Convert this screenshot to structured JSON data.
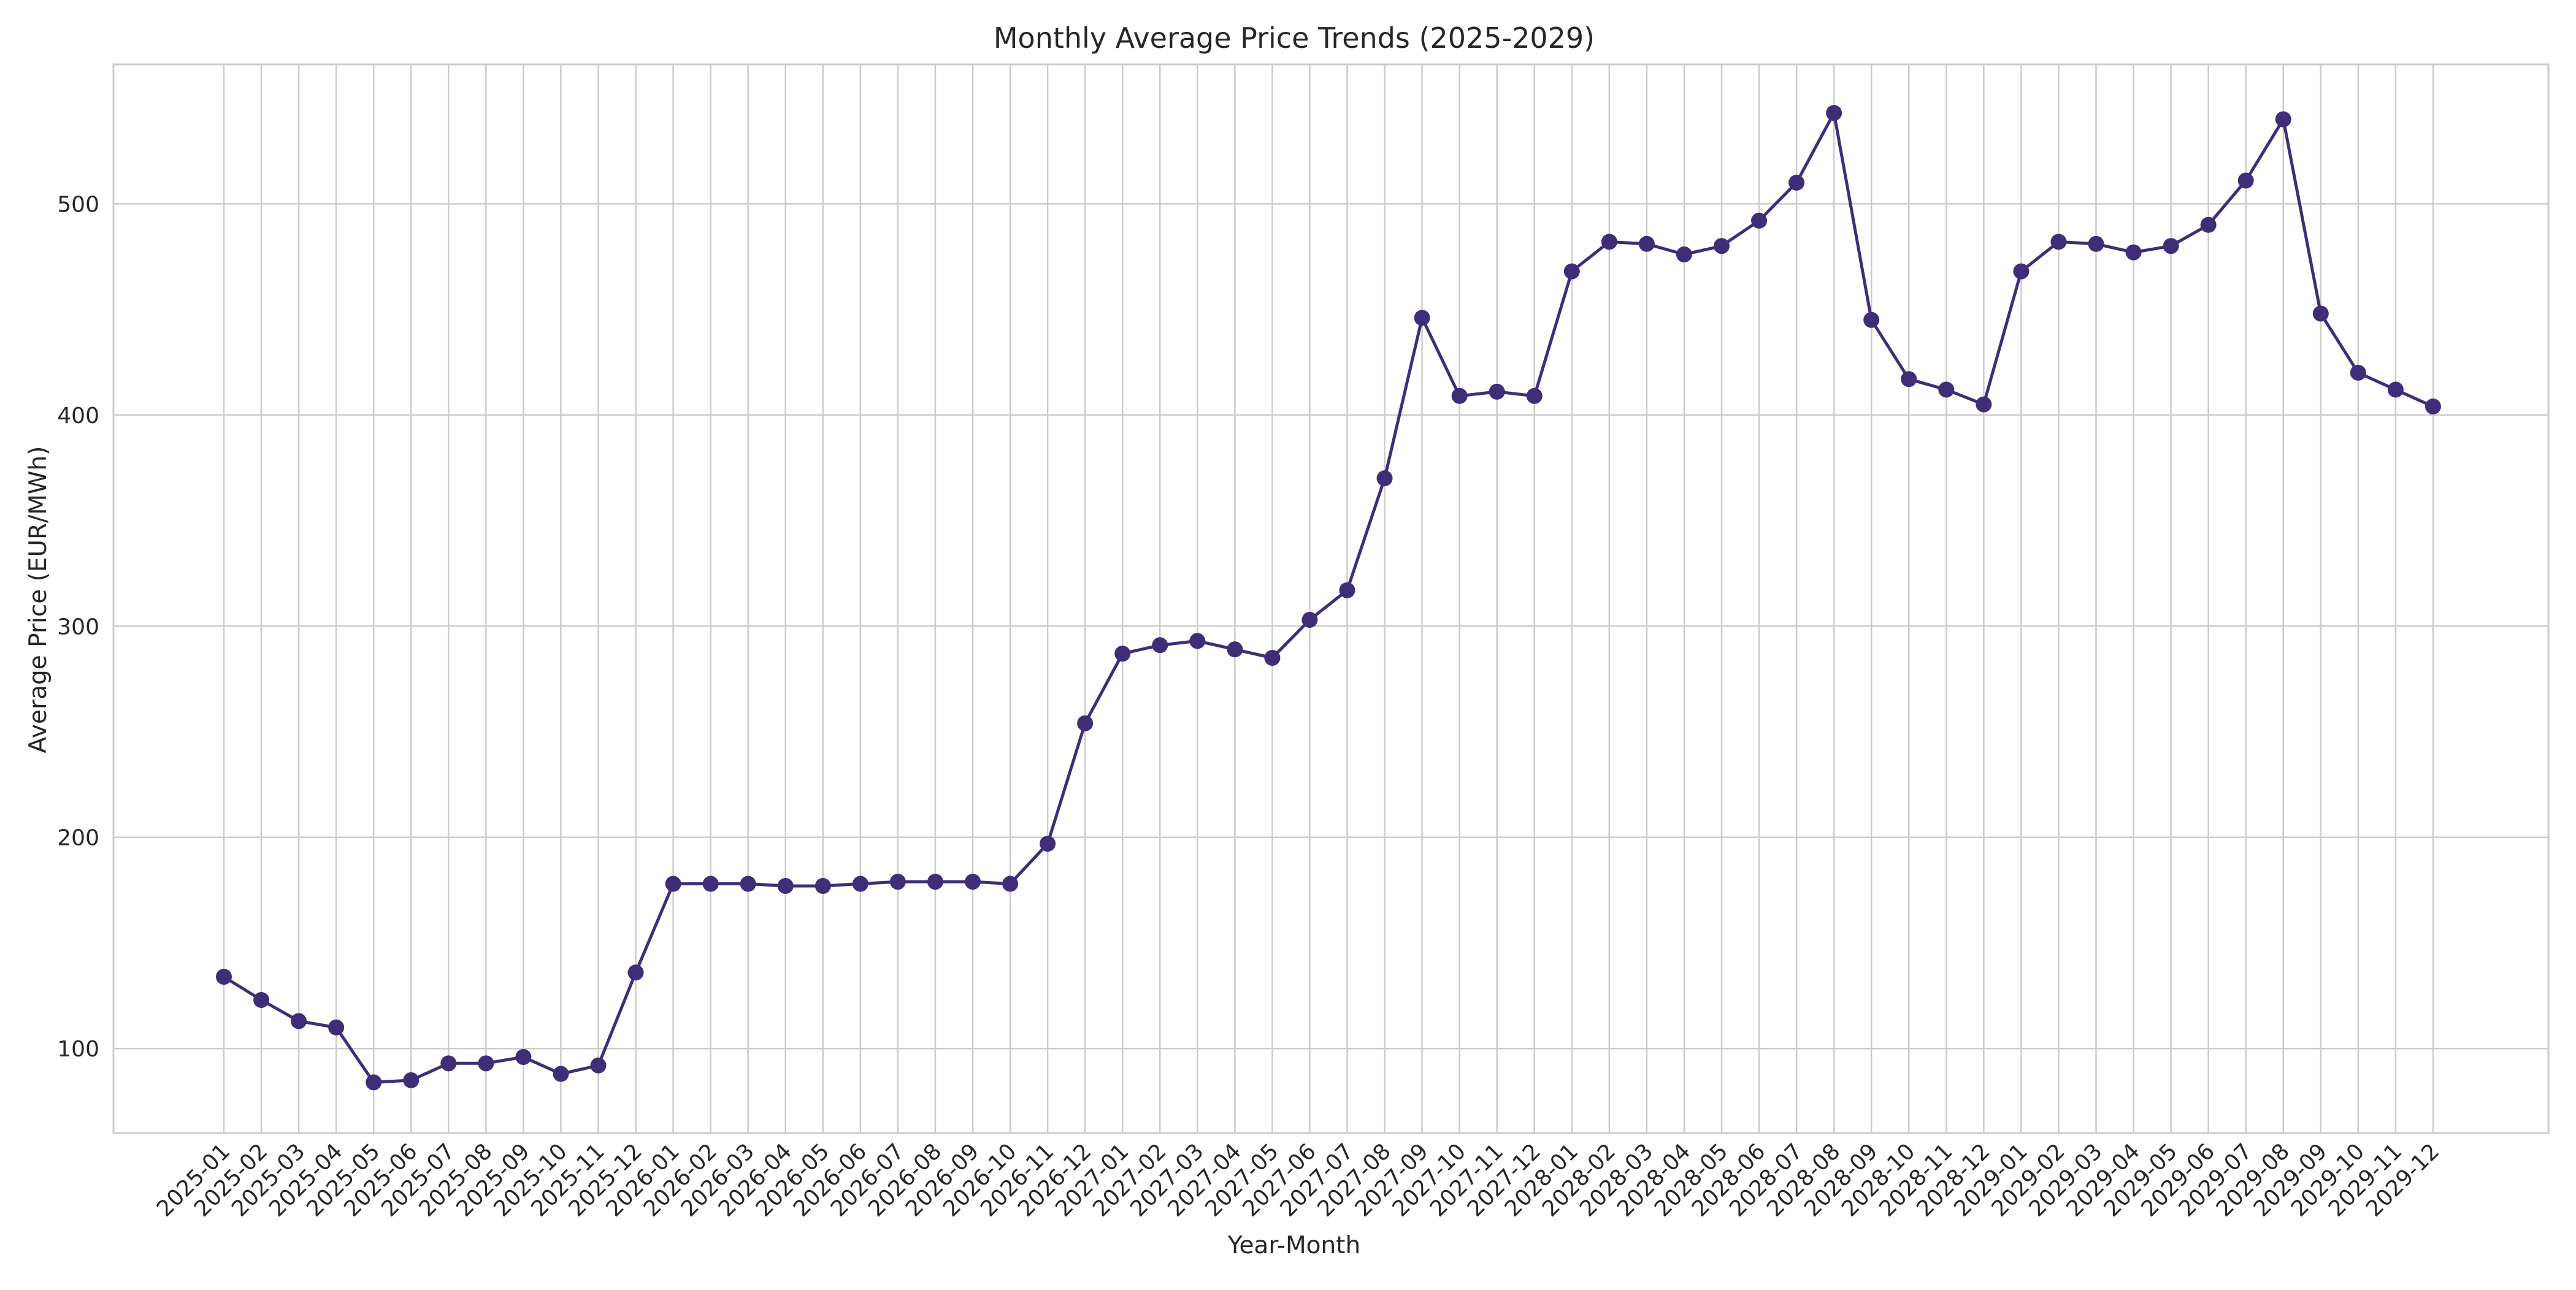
{
  "chart_data": {
    "type": "line",
    "title": "Monthly Average Price Trends (2025-2029)",
    "xlabel": "Year-Month",
    "ylabel": "Average Price (EUR/MWh)",
    "ylim": [
      60,
      566
    ],
    "yticks": [
      100,
      200,
      300,
      400,
      500
    ],
    "grid": true,
    "color": "#3f2d78",
    "categories": [
      "2025-01",
      "2025-02",
      "2025-03",
      "2025-04",
      "2025-05",
      "2025-06",
      "2025-07",
      "2025-08",
      "2025-09",
      "2025-10",
      "2025-11",
      "2025-12",
      "2026-01",
      "2026-02",
      "2026-03",
      "2026-04",
      "2026-05",
      "2026-06",
      "2026-07",
      "2026-08",
      "2026-09",
      "2026-10",
      "2026-11",
      "2026-12",
      "2027-01",
      "2027-02",
      "2027-03",
      "2027-04",
      "2027-05",
      "2027-06",
      "2027-07",
      "2027-08",
      "2027-09",
      "2027-10",
      "2027-11",
      "2027-12",
      "2028-01",
      "2028-02",
      "2028-03",
      "2028-04",
      "2028-05",
      "2028-06",
      "2028-07",
      "2028-08",
      "2028-09",
      "2028-10",
      "2028-11",
      "2028-12",
      "2029-01",
      "2029-02",
      "2029-03",
      "2029-04",
      "2029-05",
      "2029-06",
      "2029-07",
      "2029-08",
      "2029-09",
      "2029-10",
      "2029-11",
      "2029-12"
    ],
    "values": [
      134,
      123,
      113,
      110,
      84,
      85,
      93,
      93,
      96,
      88,
      92,
      136,
      178,
      178,
      178,
      177,
      177,
      178,
      179,
      179,
      179,
      178,
      197,
      254,
      287,
      291,
      293,
      289,
      285,
      303,
      317,
      370,
      446,
      409,
      411,
      409,
      468,
      482,
      481,
      476,
      480,
      492,
      510,
      543,
      445,
      417,
      412,
      405,
      468,
      482,
      481,
      477,
      480,
      490,
      511,
      540,
      448,
      420,
      412,
      404
    ]
  }
}
